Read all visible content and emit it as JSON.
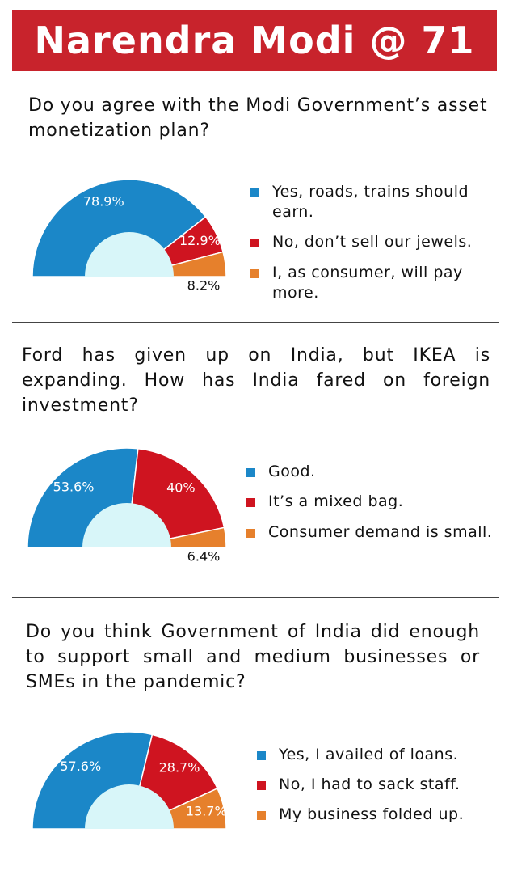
{
  "header": {
    "title": "Narendra Modi @ 71"
  },
  "chart_data": [
    {
      "type": "pie",
      "title": "Do you agree with the Modi Government’s asset monetization plan?",
      "categories": [
        "Yes, roads, trains should earn.",
        "No, don’t sell our jewels.",
        "I, as consumer, will pay more."
      ],
      "values": [
        78.9,
        12.9,
        8.2
      ],
      "value_labels": [
        "78.9%",
        "12.9%",
        "8.2%"
      ],
      "colors": [
        "#1b87c8",
        "#cf1420",
        "#e6802c"
      ]
    },
    {
      "type": "pie",
      "title": "Ford has given up on India, but IKEA is expanding. How has India fared on foreign investment?",
      "categories": [
        "Good.",
        "It’s a mixed bag.",
        "Consumer demand is small."
      ],
      "values": [
        53.6,
        40,
        6.4
      ],
      "value_labels": [
        "53.6%",
        "40%",
        "6.4%"
      ],
      "colors": [
        "#1b87c8",
        "#cf1420",
        "#e6802c"
      ]
    },
    {
      "type": "pie",
      "title": "Do you think Government of India did enough to support small and medium businesses or SMEs in the pandemic?",
      "categories": [
        "Yes, I availed of loans.",
        "No, I had to sack staff.",
        "My business folded up."
      ],
      "values": [
        57.6,
        28.7,
        13.7
      ],
      "value_labels": [
        "57.6%",
        "28.7%",
        "13.7%"
      ],
      "colors": [
        "#1b87c8",
        "#cf1420",
        "#e6802c"
      ]
    }
  ]
}
